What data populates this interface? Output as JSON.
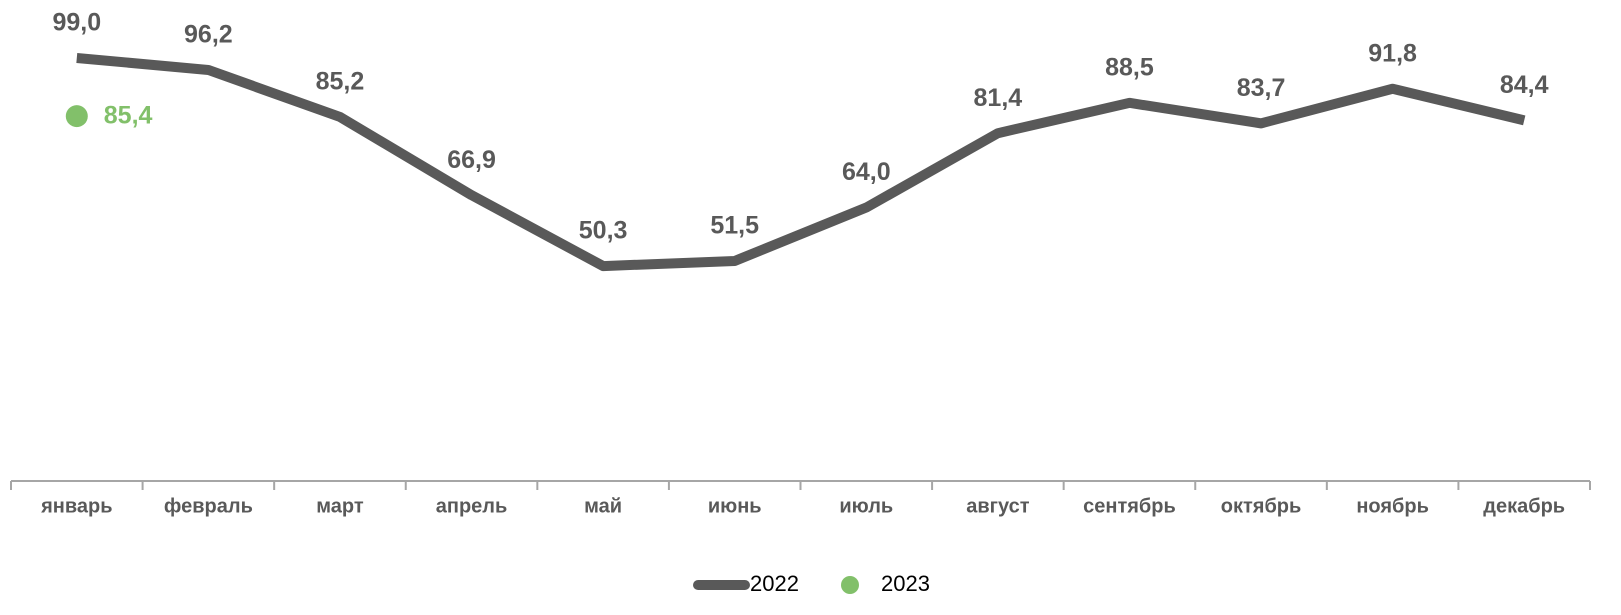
{
  "chart_data": {
    "type": "line",
    "categories": [
      "январь",
      "февраль",
      "март",
      "апрель",
      "май",
      "июнь",
      "июль",
      "август",
      "сентябрь",
      "октябрь",
      "ноябрь",
      "декабрь"
    ],
    "series": [
      {
        "name": "2022",
        "color": "#595959",
        "marker": false,
        "values": [
          99.0,
          96.2,
          85.2,
          66.9,
          50.3,
          51.5,
          64.0,
          81.4,
          88.5,
          83.7,
          91.8,
          84.4
        ],
        "value_labels": [
          "99,0",
          "96,2",
          "85,2",
          "66,9",
          "50,3",
          "51,5",
          "64,0",
          "81,4",
          "88,5",
          "83,7",
          "91,8",
          "84,4"
        ]
      },
      {
        "name": "2023",
        "color": "#82c06a",
        "marker": true,
        "values": [
          85.4,
          null,
          null,
          null,
          null,
          null,
          null,
          null,
          null,
          null,
          null,
          null
        ],
        "value_labels": [
          "85,4",
          null,
          null,
          null,
          null,
          null,
          null,
          null,
          null,
          null,
          null,
          null
        ]
      }
    ],
    "ylim": [
      0,
      110
    ],
    "grid": false,
    "legend": "bottom"
  }
}
